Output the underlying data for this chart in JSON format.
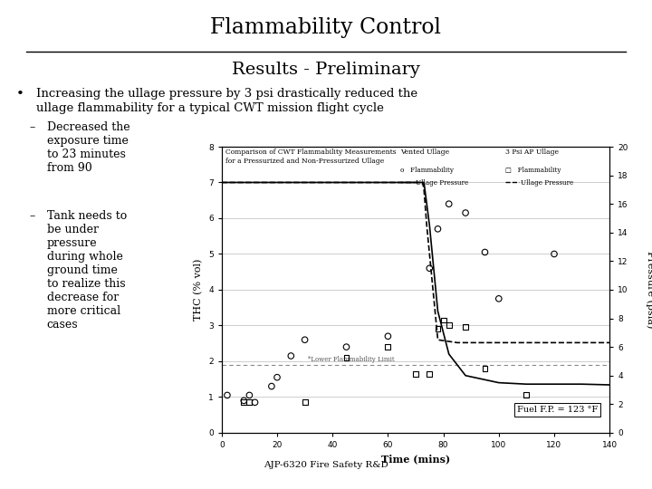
{
  "title": "Flammability Control",
  "subtitle": "Results - Preliminary",
  "bullet1_line1": "Increasing the ullage pressure by 3 psi drastically reduced the",
  "bullet1_line2": "ullage flammability for a typical CWT mission flight cycle",
  "sub1": "Decreased the\nexposure time\nto 23 minutes\nfrom 90",
  "sub2": "Tank needs to\nbe under\npressure\nduring whole\nground time\nto realize this\ndecrease for\nmore critical\ncases",
  "chart_title": "Comparison of CWT Flammability Measurements\nfor a Pressurized and Non-Pressurized Ullage",
  "xlabel": "Time (mins)",
  "ylabel_left": "THC (% vol)",
  "ylabel_right": "Pressure (psia)",
  "source": "AJP-6320 Fire Safety R&D",
  "fuel_fp": "Fuel F.P. = 123 °F",
  "lfl_label": "*Lower Flammability Limit",
  "lfl_value": 1.9,
  "xlim": [
    0,
    140
  ],
  "ylim_left": [
    0,
    8
  ],
  "ylim_right": [
    0,
    20
  ],
  "xticks": [
    0,
    20,
    40,
    60,
    80,
    100,
    120,
    140
  ],
  "yticks_left": [
    0,
    1,
    2,
    3,
    4,
    5,
    6,
    7,
    8
  ],
  "yticks_right": [
    0,
    2,
    4,
    6,
    8,
    10,
    12,
    14,
    16,
    18,
    20
  ],
  "vented_flam_x": [
    2,
    8,
    10,
    12,
    18,
    20,
    25,
    30,
    45,
    60,
    75,
    78,
    82,
    88,
    95,
    100,
    120
  ],
  "vented_flam_y": [
    1.05,
    0.9,
    1.05,
    0.85,
    1.3,
    1.55,
    2.15,
    2.6,
    2.4,
    2.7,
    4.6,
    5.7,
    6.4,
    6.15,
    5.05,
    3.75,
    5.0
  ],
  "press_flam_x": [
    8,
    10,
    30,
    45,
    60,
    70,
    75,
    78,
    80,
    82,
    88,
    95,
    110
  ],
  "press_flam_y": [
    0.85,
    0.85,
    0.85,
    2.1,
    2.4,
    1.65,
    1.65,
    2.9,
    3.15,
    3.0,
    2.95,
    1.8,
    1.05
  ],
  "vented_pressure_x": [
    0,
    72.5,
    73,
    75,
    78,
    82,
    88,
    100,
    110,
    130,
    140
  ],
  "vented_pressure_y": [
    17.5,
    17.5,
    17.5,
    14.5,
    8.5,
    5.5,
    4.0,
    3.5,
    3.4,
    3.4,
    3.35
  ],
  "press_pressure_x": [
    0,
    72.5,
    73,
    74,
    78,
    85,
    100,
    110,
    140
  ],
  "press_pressure_y": [
    17.5,
    17.5,
    17.0,
    14.5,
    6.5,
    6.3,
    6.3,
    6.3,
    6.3
  ],
  "bg_color": "#ffffff",
  "text_color": "#000000",
  "chart_bg": "#ffffff",
  "grid_color": "#bbbbbb"
}
